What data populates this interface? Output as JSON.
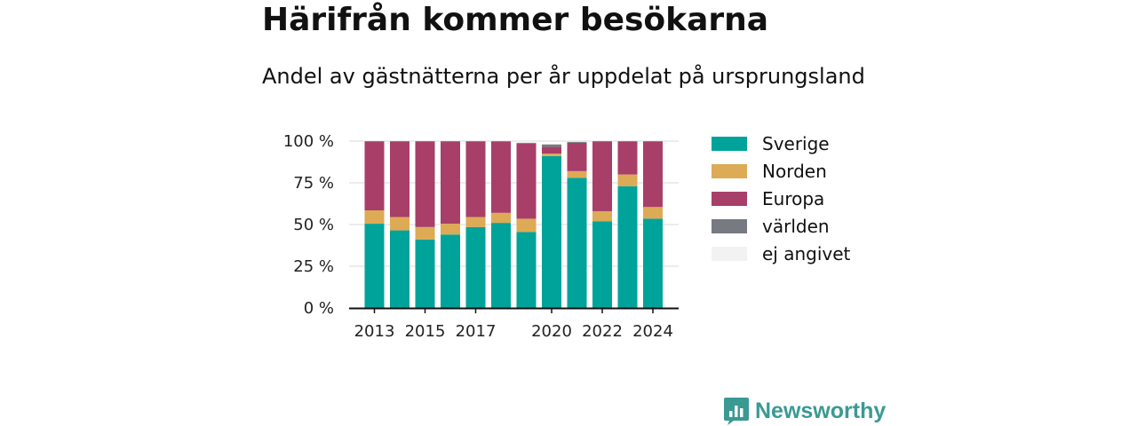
{
  "title": "Härifrån kommer besökarna",
  "subtitle": "Andel av gästnätterna per år uppdelat på ursprungsland",
  "logo": {
    "text": "Newsworthy",
    "color": "#3a9a93"
  },
  "chart_data": {
    "type": "bar",
    "stacked": true,
    "x": [
      2013,
      2014,
      2015,
      2016,
      2017,
      2018,
      2019,
      2020,
      2021,
      2022,
      2023,
      2024
    ],
    "x_tick_labels": [
      "2013",
      "2015",
      "2017",
      "2020",
      "2022",
      "2024"
    ],
    "x_tick_values": [
      2013,
      2015,
      2017,
      2020,
      2022,
      2024
    ],
    "y_tick_values": [
      0,
      25,
      50,
      75,
      100
    ],
    "y_tick_labels": [
      "0 %",
      "25 %",
      "50 %",
      "75 %",
      "100 %"
    ],
    "ylim": [
      0,
      100
    ],
    "grid": true,
    "legend_position": "right",
    "series": [
      {
        "name": "Sverige",
        "color": "#00a39a",
        "values": [
          50.5,
          46.5,
          41,
          44,
          48.5,
          51,
          45.5,
          91,
          78,
          52,
          73,
          53.5
        ]
      },
      {
        "name": "Norden",
        "color": "#ddaa55",
        "values": [
          8,
          8,
          7.5,
          6.5,
          6,
          6,
          8,
          1.5,
          4,
          6,
          7,
          7
        ]
      },
      {
        "name": "Europa",
        "color": "#a83f68",
        "values": [
          41,
          45,
          51,
          49,
          45,
          42.5,
          45,
          4,
          17,
          41.5,
          19.5,
          39
        ]
      },
      {
        "name": "världen",
        "color": "#777a80",
        "values": [
          0.5,
          0.5,
          0.5,
          0.5,
          0.5,
          0.5,
          0.5,
          1.5,
          0.5,
          0.5,
          0.5,
          0.5
        ]
      },
      {
        "name": "ej angivet",
        "color": "#f2f2f2",
        "values": [
          0,
          0,
          0,
          0,
          0,
          0,
          1,
          0,
          0,
          0,
          0,
          0
        ]
      }
    ]
  }
}
